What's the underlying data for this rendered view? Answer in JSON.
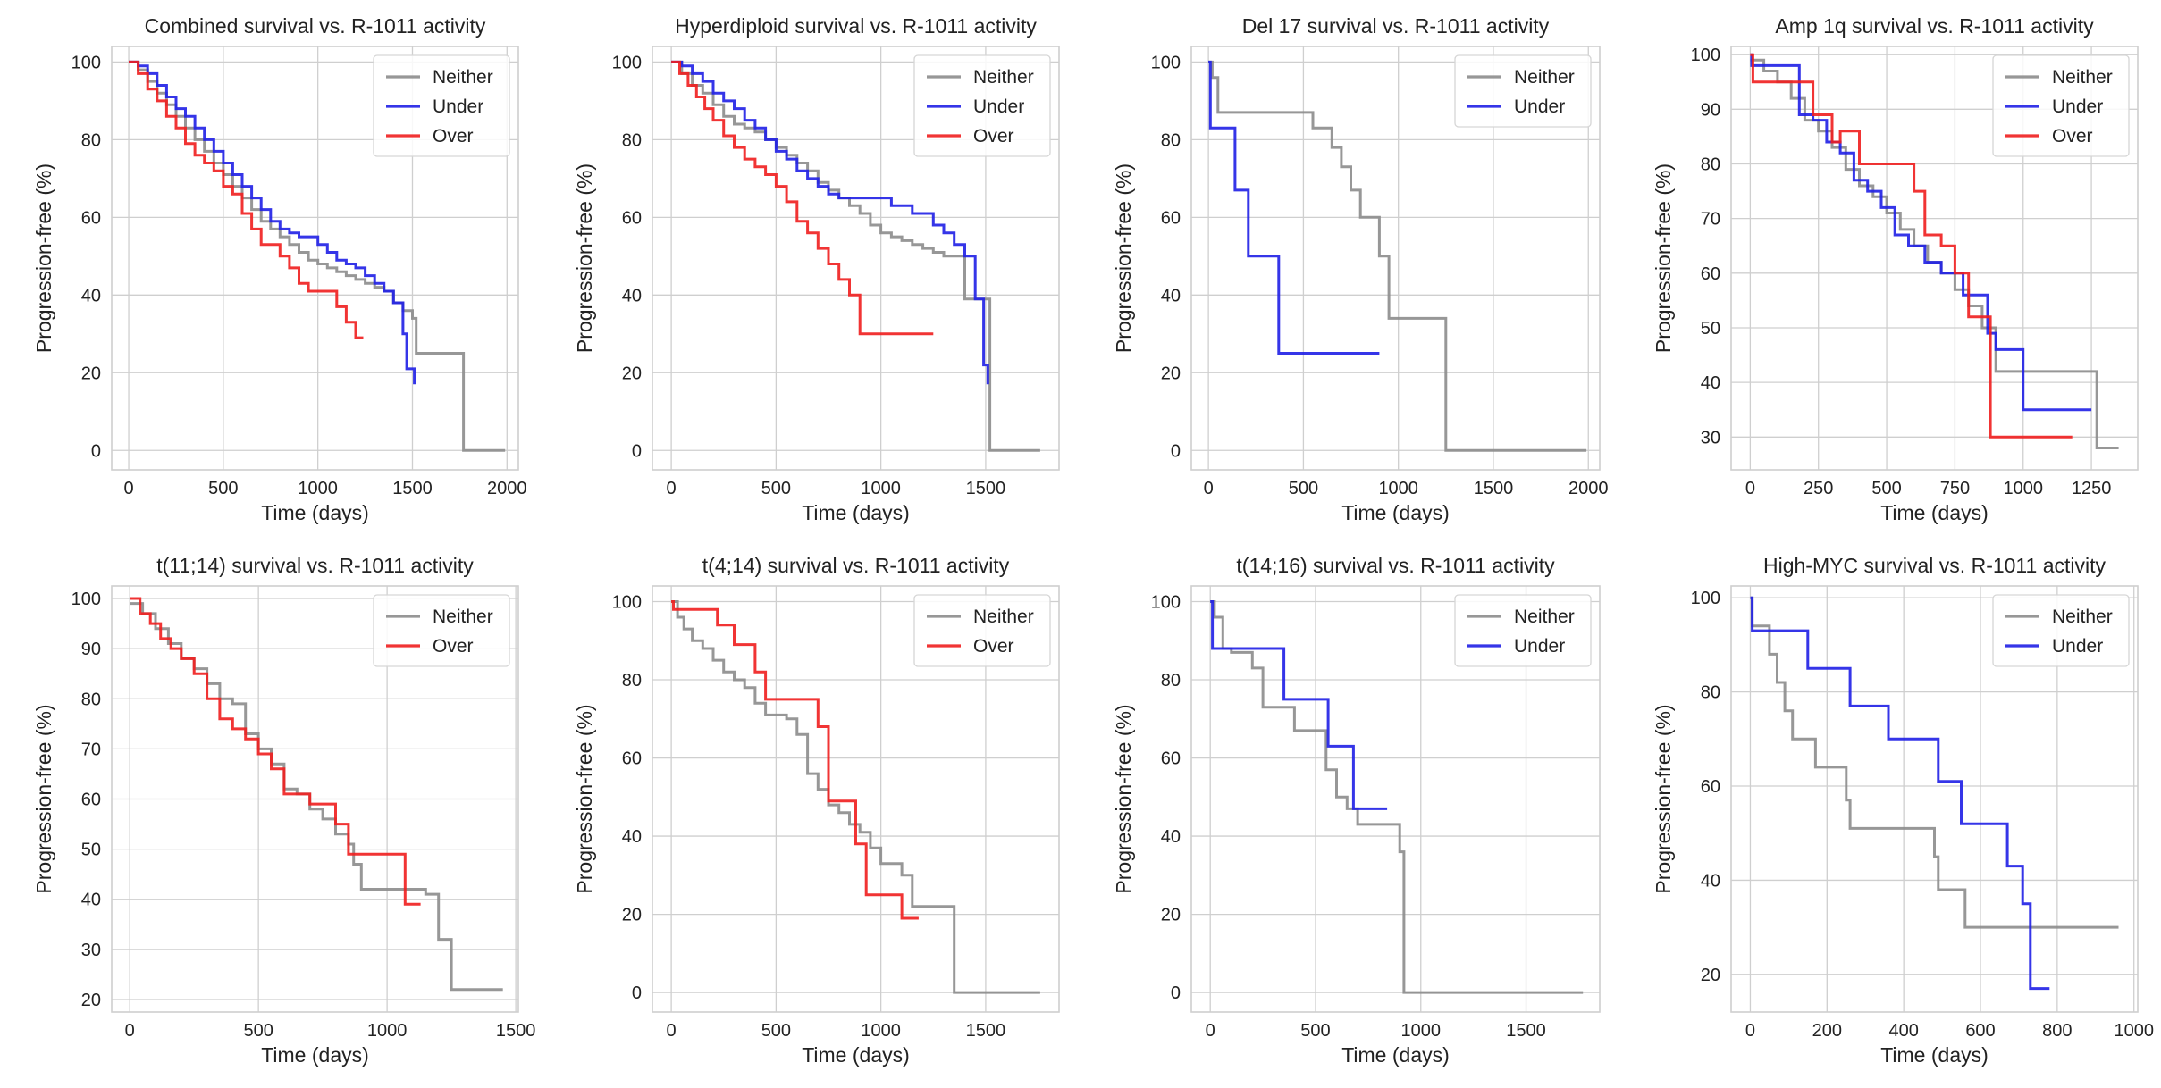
{
  "colors": {
    "Neither": "#8c8c8c",
    "Under": "#1f1fe6",
    "Over": "#f01e1e",
    "grid": "#cfcfcf",
    "frame": "#cfcfcf"
  },
  "chart_data": [
    {
      "type": "line",
      "title": "Combined survival vs. R-1011 activity",
      "xlabel": "Time (days)",
      "ylabel": "Progression-free (%)",
      "xlim": [
        -90,
        2060
      ],
      "ylim": [
        -5,
        104
      ],
      "xticks": [
        0,
        500,
        1000,
        1500,
        2000
      ],
      "yticks": [
        0,
        20,
        40,
        60,
        80,
        100
      ],
      "grid": true,
      "legend_position": "top-right",
      "series": [
        {
          "name": "Neither",
          "step": true,
          "x": [
            0,
            50,
            100,
            150,
            200,
            250,
            300,
            350,
            400,
            450,
            500,
            550,
            600,
            650,
            700,
            750,
            800,
            850,
            900,
            950,
            1000,
            1050,
            1100,
            1150,
            1200,
            1250,
            1300,
            1350,
            1400,
            1450,
            1500,
            1520,
            1760,
            1770,
            1990
          ],
          "y": [
            100,
            98,
            95,
            92,
            89,
            86,
            83,
            80,
            77,
            74,
            71,
            68,
            65,
            62,
            59,
            57,
            55,
            53,
            51,
            49,
            48,
            47,
            46,
            45,
            44,
            43,
            42,
            41,
            38,
            36,
            34,
            25,
            25,
            0,
            0
          ]
        },
        {
          "name": "Under",
          "step": true,
          "x": [
            0,
            50,
            100,
            150,
            200,
            250,
            300,
            350,
            400,
            450,
            500,
            550,
            600,
            650,
            700,
            750,
            800,
            850,
            900,
            950,
            1000,
            1050,
            1100,
            1150,
            1200,
            1250,
            1300,
            1350,
            1400,
            1450,
            1470,
            1510
          ],
          "y": [
            100,
            99,
            97,
            94,
            91,
            88,
            86,
            83,
            80,
            77,
            74,
            71,
            68,
            65,
            62,
            59,
            57,
            56,
            55,
            55,
            53,
            51,
            49,
            48,
            47,
            45,
            43,
            41,
            38,
            30,
            21,
            17
          ]
        },
        {
          "name": "Over",
          "step": true,
          "x": [
            0,
            50,
            100,
            150,
            200,
            250,
            300,
            350,
            400,
            450,
            500,
            550,
            600,
            650,
            700,
            750,
            800,
            850,
            900,
            950,
            1000,
            1050,
            1100,
            1150,
            1200,
            1240
          ],
          "y": [
            100,
            97,
            93,
            90,
            86,
            83,
            79,
            76,
            74,
            72,
            68,
            66,
            61,
            57,
            53,
            53,
            50,
            47,
            43,
            41,
            41,
            41,
            37,
            33,
            29,
            29
          ]
        }
      ]
    },
    {
      "type": "line",
      "title": "Hyperdiploid survival vs. R-1011 activity",
      "xlabel": "Time (days)",
      "ylabel": "Progression-free (%)",
      "xlim": [
        -90,
        1850
      ],
      "ylim": [
        -5,
        104
      ],
      "xticks": [
        0,
        500,
        1000,
        1500
      ],
      "yticks": [
        0,
        20,
        40,
        60,
        80,
        100
      ],
      "grid": true,
      "legend_position": "top-right",
      "series": [
        {
          "name": "Neither",
          "step": true,
          "x": [
            0,
            50,
            100,
            150,
            200,
            250,
            300,
            350,
            400,
            450,
            500,
            550,
            600,
            650,
            700,
            750,
            800,
            850,
            900,
            950,
            1000,
            1050,
            1100,
            1150,
            1200,
            1250,
            1300,
            1400,
            1500,
            1520,
            1760
          ],
          "y": [
            100,
            97,
            94,
            92,
            89,
            86,
            84,
            83,
            82,
            80,
            78,
            76,
            74,
            72,
            69,
            67,
            65,
            63,
            61,
            58,
            56,
            55,
            54,
            53,
            52,
            51,
            50,
            39,
            39,
            0,
            0
          ]
        },
        {
          "name": "Under",
          "step": true,
          "x": [
            0,
            50,
            100,
            150,
            200,
            250,
            300,
            350,
            400,
            450,
            500,
            550,
            600,
            650,
            700,
            750,
            800,
            850,
            900,
            950,
            1000,
            1050,
            1100,
            1150,
            1200,
            1250,
            1300,
            1350,
            1400,
            1450,
            1490,
            1510
          ],
          "y": [
            100,
            99,
            97,
            95,
            92,
            90,
            88,
            85,
            83,
            80,
            77,
            75,
            72,
            70,
            68,
            66,
            65,
            65,
            65,
            65,
            65,
            63,
            63,
            61,
            61,
            58,
            56,
            53,
            50,
            39,
            22,
            17
          ]
        },
        {
          "name": "Over",
          "step": true,
          "x": [
            0,
            40,
            80,
            120,
            160,
            200,
            250,
            300,
            350,
            400,
            450,
            500,
            550,
            600,
            650,
            700,
            750,
            800,
            850,
            900,
            1250
          ],
          "y": [
            100,
            97,
            94,
            91,
            88,
            85,
            81,
            78,
            75,
            73,
            71,
            68,
            64,
            59,
            56,
            52,
            48,
            44,
            40,
            30,
            30
          ]
        }
      ]
    },
    {
      "type": "line",
      "title": "Del 17 survival vs. R-1011 activity",
      "xlabel": "Time (days)",
      "ylabel": "Progression-free (%)",
      "xlim": [
        -90,
        2060
      ],
      "ylim": [
        -5,
        104
      ],
      "xticks": [
        0,
        500,
        1000,
        1500,
        2000
      ],
      "yticks": [
        0,
        20,
        40,
        60,
        80,
        100
      ],
      "grid": true,
      "legend_position": "top-right",
      "series": [
        {
          "name": "Neither",
          "step": true,
          "x": [
            0,
            20,
            50,
            300,
            550,
            650,
            700,
            750,
            800,
            900,
            950,
            1250,
            1990
          ],
          "y": [
            100,
            96,
            87,
            87,
            83,
            78,
            73,
            67,
            60,
            50,
            34,
            0,
            0
          ]
        },
        {
          "name": "Under",
          "step": true,
          "x": [
            0,
            10,
            140,
            210,
            370,
            900
          ],
          "y": [
            100,
            83,
            67,
            50,
            25,
            25
          ]
        }
      ]
    },
    {
      "type": "line",
      "title": "Amp 1q survival vs. R-1011 activity",
      "xlabel": "Time (days)",
      "ylabel": "Progression-free (%)",
      "xlim": [
        -70,
        1420
      ],
      "ylim": [
        24,
        101.5
      ],
      "xticks": [
        0,
        250,
        500,
        750,
        1000,
        1250
      ],
      "yticks": [
        30,
        40,
        50,
        60,
        70,
        80,
        90,
        100
      ],
      "grid": true,
      "legend_position": "top-right",
      "series": [
        {
          "name": "Neither",
          "step": true,
          "x": [
            0,
            50,
            100,
            150,
            200,
            250,
            300,
            350,
            400,
            450,
            500,
            550,
            600,
            650,
            700,
            750,
            800,
            850,
            900,
            1250,
            1270,
            1350
          ],
          "y": [
            99,
            97,
            95,
            92,
            88,
            86,
            83,
            79,
            76,
            74,
            71,
            68,
            65,
            62,
            60,
            57,
            54,
            50,
            42,
            42,
            28,
            28
          ]
        },
        {
          "name": "Under",
          "step": true,
          "x": [
            0,
            5,
            150,
            180,
            230,
            280,
            330,
            380,
            430,
            480,
            530,
            580,
            640,
            700,
            780,
            870,
            900,
            1000,
            1250
          ],
          "y": [
            100,
            98,
            98,
            89,
            88,
            84,
            82,
            77,
            75,
            72,
            67,
            65,
            62,
            60,
            56,
            49,
            46,
            35,
            35
          ]
        },
        {
          "name": "Over",
          "step": true,
          "x": [
            0,
            10,
            140,
            230,
            300,
            330,
            400,
            500,
            600,
            640,
            700,
            750,
            800,
            850,
            880,
            1180
          ],
          "y": [
            100,
            95,
            95,
            89,
            84,
            86,
            80,
            80,
            75,
            67,
            65,
            60,
            52,
            52,
            30,
            30
          ]
        }
      ]
    },
    {
      "type": "line",
      "title": "t(11;14) survival vs. R-1011 activity",
      "xlabel": "Time (days)",
      "ylabel": "Progression-free (%)",
      "xlim": [
        -70,
        1510
      ],
      "ylim": [
        17.5,
        102.5
      ],
      "xticks": [
        0,
        500,
        1000,
        1500
      ],
      "yticks": [
        20,
        30,
        40,
        50,
        60,
        70,
        80,
        90,
        100
      ],
      "grid": true,
      "legend_position": "top-right",
      "series": [
        {
          "name": "Neither",
          "step": true,
          "x": [
            0,
            50,
            100,
            150,
            200,
            250,
            300,
            350,
            400,
            450,
            500,
            550,
            600,
            650,
            700,
            750,
            800,
            850,
            870,
            900,
            1000,
            1100,
            1150,
            1200,
            1250,
            1450
          ],
          "y": [
            99,
            97,
            94,
            91,
            88,
            86,
            83,
            80,
            79,
            73,
            70,
            67,
            62,
            61,
            58,
            56,
            53,
            51,
            47,
            42,
            42,
            42,
            41,
            32,
            22,
            22
          ]
        },
        {
          "name": "Over",
          "step": true,
          "x": [
            0,
            40,
            80,
            120,
            160,
            200,
            250,
            300,
            350,
            400,
            450,
            500,
            550,
            600,
            700,
            800,
            850,
            950,
            1050,
            1070,
            1130
          ],
          "y": [
            100,
            97,
            95,
            92,
            90,
            88,
            85,
            80,
            76,
            74,
            72,
            69,
            66,
            61,
            59,
            55,
            49,
            49,
            49,
            39,
            39
          ]
        }
      ]
    },
    {
      "type": "line",
      "title": "t(4;14) survival vs. R-1011 activity",
      "xlabel": "Time (days)",
      "ylabel": "Progression-free (%)",
      "xlim": [
        -90,
        1850
      ],
      "ylim": [
        -5,
        104
      ],
      "xticks": [
        0,
        500,
        1000,
        1500
      ],
      "yticks": [
        0,
        20,
        40,
        60,
        80,
        100
      ],
      "grid": true,
      "legend_position": "top-right",
      "series": [
        {
          "name": "Neither",
          "step": true,
          "x": [
            0,
            30,
            60,
            100,
            150,
            200,
            250,
            300,
            350,
            400,
            450,
            500,
            550,
            600,
            650,
            700,
            750,
            800,
            850,
            900,
            950,
            1000,
            1050,
            1100,
            1150,
            1350,
            1760
          ],
          "y": [
            100,
            96,
            93,
            90,
            88,
            85,
            82,
            80,
            78,
            74,
            71,
            71,
            70,
            66,
            56,
            52,
            48,
            46,
            43,
            41,
            37,
            33,
            33,
            30,
            22,
            0,
            0
          ]
        },
        {
          "name": "Over",
          "step": true,
          "x": [
            0,
            10,
            130,
            220,
            300,
            400,
            450,
            600,
            700,
            750,
            820,
            880,
            930,
            1100,
            1180
          ],
          "y": [
            100,
            98,
            98,
            94,
            89,
            82,
            75,
            75,
            68,
            49,
            49,
            38,
            25,
            19,
            19
          ]
        }
      ]
    },
    {
      "type": "line",
      "title": "t(14;16) survival vs. R-1011 activity",
      "xlabel": "Time (days)",
      "ylabel": "Progression-free (%)",
      "xlim": [
        -90,
        1850
      ],
      "ylim": [
        -5,
        104
      ],
      "xticks": [
        0,
        500,
        1000,
        1500
      ],
      "yticks": [
        0,
        20,
        40,
        60,
        80,
        100
      ],
      "grid": true,
      "legend_position": "top-right",
      "series": [
        {
          "name": "Neither",
          "step": true,
          "x": [
            0,
            20,
            60,
            100,
            200,
            250,
            300,
            400,
            500,
            550,
            600,
            650,
            700,
            900,
            920,
            1770
          ],
          "y": [
            100,
            96,
            88,
            87,
            83,
            73,
            73,
            67,
            67,
            57,
            50,
            47,
            43,
            36,
            0,
            0
          ]
        },
        {
          "name": "Under",
          "step": true,
          "x": [
            0,
            10,
            350,
            560,
            610,
            680,
            840
          ],
          "y": [
            100,
            88,
            75,
            63,
            63,
            47,
            47
          ]
        }
      ]
    },
    {
      "type": "line",
      "title": "High-MYC survival vs. R-1011 activity",
      "xlabel": "Time (days)",
      "ylabel": "Progression-free (%)",
      "xlim": [
        -50,
        1010
      ],
      "ylim": [
        12,
        102.5
      ],
      "xticks": [
        0,
        200,
        400,
        600,
        800,
        1000
      ],
      "yticks": [
        20,
        40,
        60,
        80,
        100
      ],
      "grid": true,
      "legend_position": "top-right",
      "series": [
        {
          "name": "Neither",
          "step": true,
          "x": [
            0,
            5,
            50,
            70,
            90,
            110,
            170,
            250,
            260,
            480,
            490,
            550,
            560,
            960
          ],
          "y": [
            100,
            94,
            88,
            82,
            76,
            70,
            64,
            57,
            51,
            45,
            38,
            38,
            30,
            30
          ]
        },
        {
          "name": "Under",
          "step": true,
          "x": [
            0,
            5,
            150,
            260,
            360,
            490,
            550,
            670,
            710,
            730,
            780
          ],
          "y": [
            100,
            93,
            85,
            77,
            70,
            61,
            52,
            43,
            35,
            17,
            17
          ]
        }
      ]
    }
  ]
}
